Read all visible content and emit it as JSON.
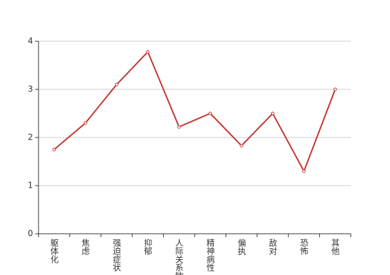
{
  "chart_data": {
    "type": "line",
    "categories": [
      "躯体化",
      "焦虑",
      "强迫症状",
      "抑郁",
      "人际关系敏感",
      "精神病性",
      "偏执",
      "敌对",
      "恐怖",
      "其他"
    ],
    "series": [
      {
        "color": "#c23531",
        "values": [
          1.75,
          2.3,
          3.1,
          3.78,
          2.22,
          2.5,
          1.83,
          2.5,
          1.3,
          3.0
        ]
      }
    ],
    "ylim": [
      0,
      4
    ],
    "yticks": [
      0,
      1,
      2,
      3,
      4
    ],
    "grid": true
  }
}
